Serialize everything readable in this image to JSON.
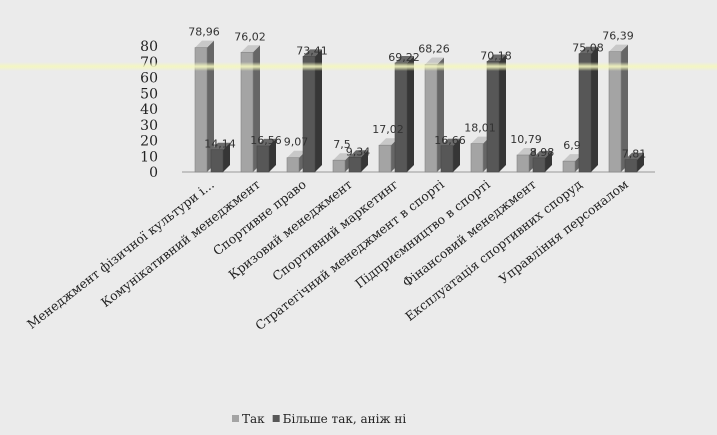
{
  "chart_data": {
    "type": "bar",
    "categories": [
      "Менеджмент фізичної культури і...",
      "Комунікативний менеджмент",
      "Спортивне право",
      "Кризовий менеджмент",
      "Спортивний маркетинг",
      "Стратегічний менеджмент в спорті",
      "Підприємництво в спорті",
      "Фінансовий менеджмент",
      "Експлуатація спортивних споруд",
      "Управління персоналом"
    ],
    "series": [
      {
        "name": "Так",
        "color": "#a4a4a4",
        "values": [
          78.96,
          76.02,
          9.07,
          7.5,
          17.02,
          68.26,
          18.01,
          10.79,
          6.9,
          76.39
        ],
        "labels": [
          "78,96",
          "76,02",
          "9,07",
          "7,5",
          "17,02",
          "68,26",
          "18,01",
          "10,79",
          "6,9",
          "76,39"
        ]
      },
      {
        "name": "Більше так, аніж ні",
        "color": "#575757",
        "values": [
          14.14,
          16.56,
          73.41,
          9.34,
          69.22,
          16.66,
          70.18,
          8.98,
          75.08,
          7.81
        ],
        "labels": [
          "14,14",
          "16,56",
          "73,41",
          "9,34",
          "69,22",
          "16,66",
          "70,18",
          "8,98",
          "75,08",
          "7,81"
        ]
      }
    ],
    "yticks": [
      "0",
      "10",
      "20",
      "30",
      "40",
      "50",
      "60",
      "70",
      "80"
    ],
    "ylim": [
      0,
      80
    ],
    "legend": [
      "Так",
      "Більше так, аніж ні"
    ],
    "legend_position": "bottom",
    "grid": false
  }
}
